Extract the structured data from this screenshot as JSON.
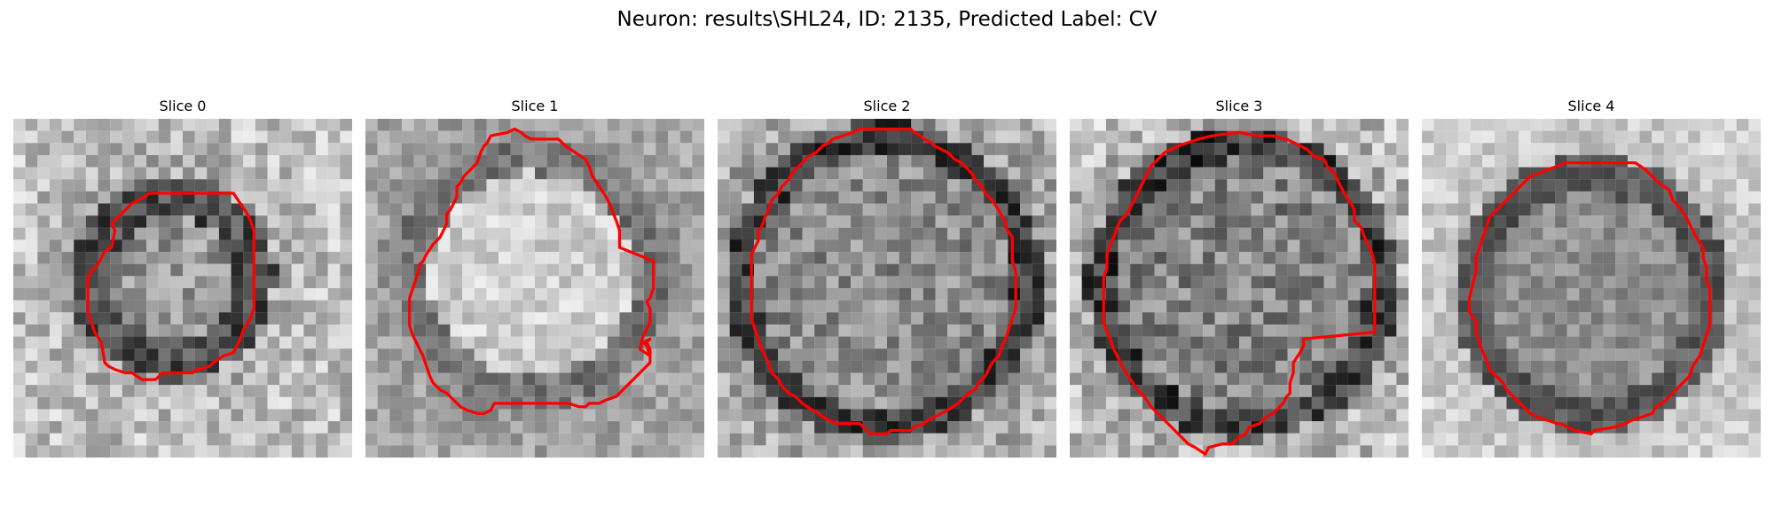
{
  "figure": {
    "title": "Neuron: results\\SHL24, ID: 2135, Predicted Label: CV",
    "contour_color": "#ff0000",
    "colormap": "grayscale"
  },
  "slices": [
    {
      "label": "Slice 0"
    },
    {
      "label": "Slice 1"
    },
    {
      "label": "Slice 2"
    },
    {
      "label": "Slice 3"
    },
    {
      "label": "Slice 4"
    }
  ]
}
